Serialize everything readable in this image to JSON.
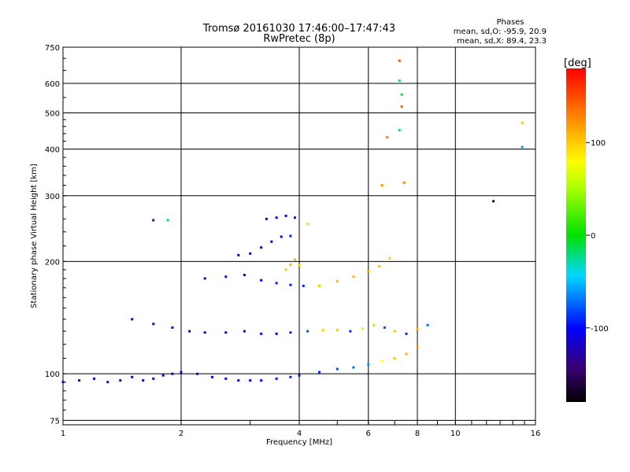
{
  "chart_data": {
    "type": "scatter",
    "title": "Tromsø 20161030 17:46:00–17:47:43",
    "subtitle": "RwPretec (8p)",
    "phases_heading": "Phases",
    "phases_o": "mean, sd,O: -95.9, 20.9",
    "phases_x": "mean, sd,X:  89.4, 23.3",
    "xlabel": "Frequency [MHz]",
    "ylabel": "Stationary phase Virtual Height [km]",
    "xscale": "log",
    "yscale": "log",
    "xlim": [
      1,
      16
    ],
    "ylim": [
      73,
      750
    ],
    "xticks": [
      1,
      2,
      4,
      6,
      8,
      10,
      16
    ],
    "xticklabels": [
      "1",
      "2",
      "4",
      "6",
      "8",
      "10",
      "16"
    ],
    "yticks": [
      75,
      100,
      200,
      300,
      400,
      500,
      600,
      750
    ],
    "yticklabels": [
      "75",
      "100",
      "200",
      "300",
      "400",
      "500",
      "600",
      "750"
    ],
    "grid": true,
    "colorbar": {
      "label": "[deg]",
      "range": [
        -180,
        180
      ],
      "ticks": [
        100,
        0,
        -100
      ],
      "ticklabels": [
        "100",
        "0",
        "-100"
      ]
    },
    "series": [
      {
        "values": [
          [
            1.0,
            95,
            -115
          ],
          [
            1.1,
            96,
            -125
          ],
          [
            1.2,
            97,
            -120
          ],
          [
            1.3,
            95,
            -130
          ],
          [
            1.4,
            96,
            -125
          ],
          [
            1.5,
            98,
            -120
          ],
          [
            1.6,
            96,
            -125
          ],
          [
            1.7,
            97,
            -120
          ],
          [
            1.8,
            99,
            -115
          ],
          [
            1.9,
            100,
            -120
          ],
          [
            2.0,
            101,
            -115
          ],
          [
            2.2,
            100,
            -110
          ],
          [
            2.4,
            98,
            -105
          ],
          [
            2.6,
            97,
            -100
          ],
          [
            2.8,
            96,
            -100
          ],
          [
            3.0,
            96,
            -105
          ],
          [
            3.2,
            96,
            -100
          ],
          [
            3.5,
            97,
            -95
          ],
          [
            3.8,
            98,
            -95
          ],
          [
            4.0,
            99,
            -95
          ],
          [
            4.5,
            101,
            -90
          ],
          [
            5.0,
            103,
            -80
          ],
          [
            5.5,
            104,
            -70
          ],
          [
            6.0,
            106,
            -60
          ],
          [
            6.5,
            108,
            80
          ],
          [
            7.0,
            110,
            100
          ],
          [
            7.5,
            113,
            110
          ],
          [
            8.0,
            118,
            115
          ]
        ]
      },
      {
        "values": [
          [
            1.5,
            140,
            -130
          ],
          [
            1.7,
            136,
            -125
          ],
          [
            1.9,
            133,
            -120
          ],
          [
            2.1,
            130,
            -115
          ],
          [
            2.3,
            129,
            -110
          ],
          [
            2.6,
            129,
            -105
          ],
          [
            2.9,
            130,
            -100
          ],
          [
            3.2,
            128,
            -105
          ],
          [
            3.5,
            128,
            -100
          ],
          [
            3.8,
            129,
            -95
          ],
          [
            4.2,
            130,
            -80
          ],
          [
            4.6,
            131,
            95
          ],
          [
            5.0,
            131,
            100
          ],
          [
            5.4,
            130,
            -90
          ],
          [
            5.8,
            132,
            90
          ],
          [
            6.2,
            135,
            100
          ],
          [
            6.6,
            133,
            -80
          ],
          [
            7.0,
            130,
            100
          ],
          [
            7.5,
            128,
            -90
          ],
          [
            8.0,
            132,
            110
          ],
          [
            8.5,
            135,
            -70
          ]
        ]
      },
      {
        "values": [
          [
            2.3,
            180,
            -115
          ],
          [
            2.6,
            182,
            -110
          ],
          [
            2.9,
            184,
            -105
          ],
          [
            3.2,
            178,
            -100
          ],
          [
            3.5,
            175,
            -95
          ],
          [
            3.8,
            173,
            -95
          ],
          [
            4.1,
            172,
            -90
          ],
          [
            4.5,
            172,
            100
          ],
          [
            5.0,
            177,
            105
          ],
          [
            5.5,
            182,
            110
          ],
          [
            6.0,
            188,
            110
          ],
          [
            6.4,
            194,
            105
          ],
          [
            6.8,
            204,
            100
          ]
        ]
      },
      {
        "values": [
          [
            2.8,
            208,
            -110
          ],
          [
            3.0,
            210,
            -115
          ],
          [
            3.2,
            218,
            -110
          ],
          [
            3.4,
            226,
            -105
          ],
          [
            3.6,
            233,
            -100
          ],
          [
            3.8,
            234,
            -95
          ]
        ]
      },
      {
        "values": [
          [
            3.3,
            260,
            -100
          ],
          [
            3.5,
            262,
            -105
          ],
          [
            3.7,
            265,
            -100
          ],
          [
            3.9,
            262,
            -95
          ],
          [
            4.2,
            252,
            95
          ]
        ]
      },
      {
        "values": [
          [
            3.7,
            190,
            100
          ],
          [
            3.8,
            196,
            105
          ],
          [
            3.9,
            202,
            110
          ],
          [
            4.0,
            195,
            100
          ]
        ]
      },
      {
        "values": [
          [
            6.5,
            320,
            120
          ],
          [
            6.7,
            430,
            130
          ],
          [
            7.2,
            690,
            150
          ],
          [
            7.2,
            610,
            -20
          ],
          [
            7.3,
            560,
            -10
          ],
          [
            7.3,
            520,
            140
          ],
          [
            7.2,
            450,
            -30
          ],
          [
            7.4,
            325,
            130
          ],
          [
            12.5,
            290,
            -160
          ],
          [
            14.8,
            470,
            100
          ],
          [
            14.8,
            405,
            -60
          ],
          [
            1.7,
            258,
            -140
          ],
          [
            1.85,
            258,
            -20
          ]
        ]
      }
    ]
  }
}
